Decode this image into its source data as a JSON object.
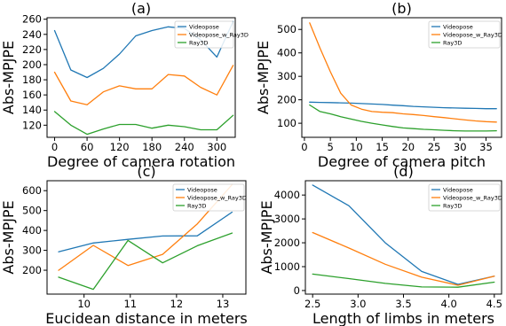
{
  "colors": {
    "blue": "#1f77b4",
    "orange": "#ff7f0e",
    "green": "#2ca02c"
  },
  "chart_data": [
    {
      "type": "line",
      "title": "(a)",
      "xlabel": "Degree of camera rotation",
      "ylabel": "Abs-MPJPE",
      "xlim": [
        -14,
        334
      ],
      "ylim": [
        104,
        262
      ],
      "xticks": [
        0,
        60,
        120,
        180,
        240,
        300
      ],
      "yticks": [
        120,
        140,
        160,
        180,
        200,
        220,
        240,
        260
      ],
      "legend": "top-right",
      "x": [
        0,
        30,
        60,
        90,
        120,
        150,
        180,
        210,
        240,
        270,
        300,
        330
      ],
      "series": [
        {
          "name": "Videopose",
          "color": "#1f77b4",
          "values": [
            245,
            193,
            183,
            195,
            214,
            238,
            245,
            250,
            248,
            233,
            210,
            257
          ]
        },
        {
          "name": "Videopose_w_Ray3D",
          "color": "#ff7f0e",
          "values": [
            190,
            152,
            147,
            164,
            172,
            168,
            168,
            187,
            185,
            170,
            160,
            199
          ]
        },
        {
          "name": "Ray3D",
          "color": "#2ca02c",
          "values": [
            138,
            120,
            108,
            115,
            121,
            121,
            116,
            120,
            118,
            114,
            114,
            133
          ]
        }
      ]
    },
    {
      "type": "line",
      "title": "(b)",
      "xlabel": "Degree of camera pitch",
      "ylabel": "Abs-MPJPE",
      "xlim": [
        -0.5,
        38
      ],
      "ylim": [
        40,
        550
      ],
      "xticks": [
        0,
        5,
        10,
        15,
        20,
        25,
        30,
        35
      ],
      "yticks": [
        100,
        200,
        300,
        400,
        500
      ],
      "legend": "top-right",
      "x": [
        1,
        3,
        5,
        7,
        9,
        11,
        13,
        15,
        17,
        19,
        21,
        23,
        25,
        27,
        29,
        31,
        33,
        35,
        37
      ],
      "series": [
        {
          "name": "Videopose",
          "color": "#1f77b4",
          "values": [
            190,
            189,
            188,
            187,
            186,
            184,
            182,
            180,
            177,
            175,
            172,
            170,
            168,
            166,
            165,
            164,
            163,
            162,
            162
          ]
        },
        {
          "name": "Videopose_w_Ray3D",
          "color": "#ff7f0e",
          "values": [
            528,
            420,
            320,
            228,
            178,
            160,
            150,
            147,
            145,
            140,
            137,
            133,
            128,
            124,
            119,
            114,
            110,
            107,
            105
          ]
        },
        {
          "name": "Ray3D",
          "color": "#2ca02c",
          "values": [
            178,
            150,
            140,
            128,
            118,
            108,
            100,
            93,
            86,
            80,
            77,
            74,
            72,
            70,
            68,
            67,
            67,
            67,
            68
          ]
        }
      ]
    },
    {
      "type": "line",
      "title": "(c)",
      "xlabel": "Eucidean distance in meters",
      "ylabel": "Abs-MPJPE",
      "xlim": [
        9.2,
        13.5
      ],
      "ylim": [
        80,
        650
      ],
      "xticks": [
        10,
        11,
        12,
        13
      ],
      "yticks": [
        200,
        300,
        400,
        500,
        600
      ],
      "legend": "top-right",
      "x": [
        9.45,
        10.2,
        10.95,
        11.7,
        12.45,
        13.2
      ],
      "series": [
        {
          "name": "Videopose",
          "color": "#1f77b4",
          "values": [
            293,
            337,
            355,
            372,
            373,
            492
          ]
        },
        {
          "name": "Videopose_w_Ray3D",
          "color": "#ff7f0e",
          "values": [
            200,
            325,
            224,
            280,
            433,
            630
          ]
        },
        {
          "name": "Ray3D",
          "color": "#2ca02c",
          "values": [
            165,
            104,
            350,
            237,
            323,
            387
          ]
        }
      ]
    },
    {
      "type": "line",
      "title": "(d)",
      "xlabel": "Length of limbs in meters",
      "ylabel": "Abs-MPJPE",
      "xlim": [
        2.42,
        4.58
      ],
      "ylim": [
        -150,
        4600
      ],
      "xticks": [
        2.5,
        3.0,
        3.5,
        4.0,
        4.5
      ],
      "yticks": [
        0,
        1000,
        2000,
        3000,
        4000
      ],
      "legend": "top-right",
      "x": [
        2.5,
        2.9,
        3.3,
        3.7,
        4.1,
        4.5
      ],
      "series": [
        {
          "name": "Videopose",
          "color": "#1f77b4",
          "values": [
            4420,
            3550,
            2000,
            800,
            260,
            600
          ]
        },
        {
          "name": "Videopose_w_Ray3D",
          "color": "#ff7f0e",
          "values": [
            2430,
            1780,
            1100,
            560,
            220,
            600
          ]
        },
        {
          "name": "Ray3D",
          "color": "#2ca02c",
          "values": [
            690,
            500,
            300,
            150,
            140,
            350
          ]
        }
      ]
    }
  ]
}
